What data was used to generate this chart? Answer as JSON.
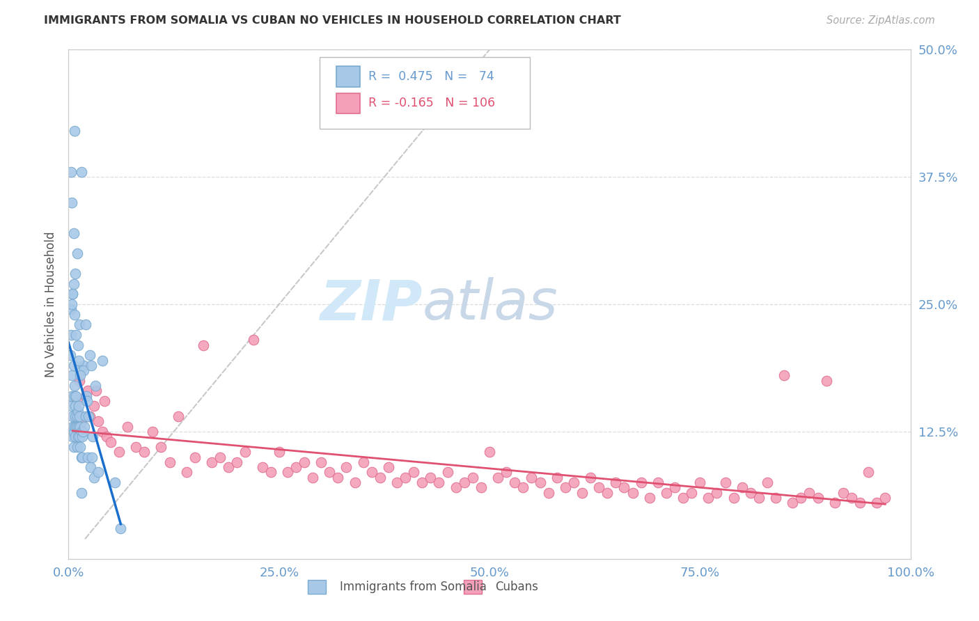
{
  "title": "IMMIGRANTS FROM SOMALIA VS CUBAN NO VEHICLES IN HOUSEHOLD CORRELATION CHART",
  "source": "Source: ZipAtlas.com",
  "ylabel": "No Vehicles in Household",
  "xlim": [
    0.0,
    1.0
  ],
  "ylim": [
    0.0,
    0.5
  ],
  "yticks": [
    0.0,
    0.125,
    0.25,
    0.375,
    0.5
  ],
  "ytick_labels": [
    "",
    "12.5%",
    "25.0%",
    "37.5%",
    "50.0%"
  ],
  "ytick_labels_right": [
    "",
    "12.5%",
    "25.0%",
    "37.5%",
    "50.0%"
  ],
  "xticks": [
    0.0,
    0.25,
    0.5,
    0.75,
    1.0
  ],
  "xtick_labels": [
    "0.0%",
    "25.0%",
    "50.0%",
    "75.0%",
    "100.0%"
  ],
  "somalia_R": 0.475,
  "somalia_N": 74,
  "cuban_R": -0.165,
  "cuban_N": 106,
  "somalia_color": "#A8C8E8",
  "cuban_color": "#F4A0B8",
  "somalia_edge_color": "#7AAAD0",
  "cuban_edge_color": "#E07090",
  "trend_somalia_color": "#1A6FCC",
  "trend_cuban_color": "#E05070",
  "trend_dashed_color": "#BBBBBB",
  "background_color": "#FFFFFF",
  "grid_color": "#DDDDDD",
  "tick_label_color": "#6699CC",
  "watermark_zip_color": "#D0E8F8",
  "watermark_atlas_color": "#C8D8E8",
  "somalia_x": [
    0.002,
    0.003,
    0.003,
    0.004,
    0.004,
    0.005,
    0.005,
    0.005,
    0.006,
    0.006,
    0.006,
    0.007,
    0.007,
    0.007,
    0.008,
    0.008,
    0.008,
    0.009,
    0.009,
    0.01,
    0.01,
    0.01,
    0.011,
    0.011,
    0.012,
    0.012,
    0.013,
    0.013,
    0.014,
    0.014,
    0.015,
    0.015,
    0.016,
    0.016,
    0.017,
    0.018,
    0.018,
    0.019,
    0.02,
    0.021,
    0.022,
    0.023,
    0.024,
    0.025,
    0.026,
    0.027,
    0.028,
    0.029,
    0.03,
    0.032,
    0.003,
    0.004,
    0.005,
    0.006,
    0.007,
    0.008,
    0.009,
    0.01,
    0.011,
    0.012,
    0.013,
    0.014,
    0.015,
    0.003,
    0.004,
    0.005,
    0.006,
    0.007,
    0.02,
    0.035,
    0.04,
    0.055,
    0.062,
    0.015
  ],
  "somalia_y": [
    0.2,
    0.22,
    0.15,
    0.18,
    0.16,
    0.13,
    0.14,
    0.12,
    0.125,
    0.11,
    0.19,
    0.17,
    0.16,
    0.13,
    0.15,
    0.14,
    0.12,
    0.16,
    0.13,
    0.14,
    0.13,
    0.11,
    0.145,
    0.12,
    0.15,
    0.13,
    0.14,
    0.12,
    0.13,
    0.11,
    0.125,
    0.1,
    0.12,
    0.1,
    0.125,
    0.19,
    0.185,
    0.13,
    0.14,
    0.16,
    0.155,
    0.1,
    0.14,
    0.2,
    0.09,
    0.19,
    0.1,
    0.12,
    0.08,
    0.17,
    0.245,
    0.25,
    0.26,
    0.27,
    0.24,
    0.28,
    0.22,
    0.3,
    0.21,
    0.195,
    0.23,
    0.18,
    0.38,
    0.38,
    0.35,
    0.26,
    0.32,
    0.42,
    0.23,
    0.085,
    0.195,
    0.075,
    0.03,
    0.065
  ],
  "cuban_x": [
    0.005,
    0.01,
    0.015,
    0.02,
    0.025,
    0.03,
    0.035,
    0.04,
    0.045,
    0.05,
    0.06,
    0.07,
    0.08,
    0.09,
    0.1,
    0.11,
    0.12,
    0.13,
    0.14,
    0.15,
    0.16,
    0.17,
    0.18,
    0.19,
    0.2,
    0.21,
    0.22,
    0.23,
    0.24,
    0.25,
    0.26,
    0.27,
    0.28,
    0.29,
    0.3,
    0.31,
    0.32,
    0.33,
    0.34,
    0.35,
    0.36,
    0.37,
    0.38,
    0.39,
    0.4,
    0.41,
    0.42,
    0.43,
    0.44,
    0.45,
    0.46,
    0.47,
    0.48,
    0.49,
    0.5,
    0.51,
    0.52,
    0.53,
    0.54,
    0.55,
    0.56,
    0.57,
    0.58,
    0.59,
    0.6,
    0.61,
    0.62,
    0.63,
    0.64,
    0.65,
    0.66,
    0.67,
    0.68,
    0.69,
    0.7,
    0.71,
    0.72,
    0.73,
    0.74,
    0.75,
    0.76,
    0.77,
    0.78,
    0.79,
    0.8,
    0.81,
    0.82,
    0.83,
    0.84,
    0.85,
    0.86,
    0.87,
    0.88,
    0.89,
    0.9,
    0.91,
    0.92,
    0.93,
    0.94,
    0.95,
    0.96,
    0.97,
    0.013,
    0.023,
    0.033,
    0.043
  ],
  "cuban_y": [
    0.125,
    0.155,
    0.135,
    0.16,
    0.14,
    0.15,
    0.135,
    0.125,
    0.12,
    0.115,
    0.105,
    0.13,
    0.11,
    0.105,
    0.125,
    0.11,
    0.095,
    0.14,
    0.085,
    0.1,
    0.21,
    0.095,
    0.1,
    0.09,
    0.095,
    0.105,
    0.215,
    0.09,
    0.085,
    0.105,
    0.085,
    0.09,
    0.095,
    0.08,
    0.095,
    0.085,
    0.08,
    0.09,
    0.075,
    0.095,
    0.085,
    0.08,
    0.09,
    0.075,
    0.08,
    0.085,
    0.075,
    0.08,
    0.075,
    0.085,
    0.07,
    0.075,
    0.08,
    0.07,
    0.105,
    0.08,
    0.085,
    0.075,
    0.07,
    0.08,
    0.075,
    0.065,
    0.08,
    0.07,
    0.075,
    0.065,
    0.08,
    0.07,
    0.065,
    0.075,
    0.07,
    0.065,
    0.075,
    0.06,
    0.075,
    0.065,
    0.07,
    0.06,
    0.065,
    0.075,
    0.06,
    0.065,
    0.075,
    0.06,
    0.07,
    0.065,
    0.06,
    0.075,
    0.06,
    0.18,
    0.055,
    0.06,
    0.065,
    0.06,
    0.175,
    0.055,
    0.065,
    0.06,
    0.055,
    0.085,
    0.055,
    0.06,
    0.175,
    0.165,
    0.165,
    0.155
  ]
}
